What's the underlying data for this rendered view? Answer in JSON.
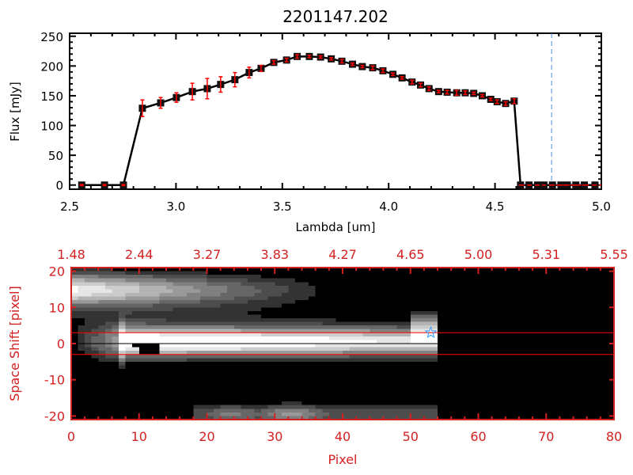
{
  "chart_data": [
    {
      "type": "line",
      "title": "2201147.202",
      "xlabel": "Lambda [um]",
      "ylabel": "Flux [mJy]",
      "xlim": [
        2.5,
        5.0
      ],
      "ylim": [
        -7,
        255
      ],
      "xticks": [
        "2.5",
        "3.0",
        "3.5",
        "4.0",
        "4.5",
        "5.0"
      ],
      "xtick_values": [
        2.5,
        3.0,
        3.5,
        4.0,
        4.5,
        5.0
      ],
      "yticks": [
        "0",
        "50",
        "100",
        "150",
        "200",
        "250"
      ],
      "ytick_values": [
        0,
        50,
        100,
        150,
        200,
        250
      ],
      "grid": false,
      "series": [
        {
          "x": [
            2.557,
            2.664,
            2.753,
            2.842,
            2.928,
            3.002,
            3.077,
            3.147,
            3.21,
            3.277,
            3.344,
            3.4,
            3.46,
            3.52,
            3.57,
            3.627,
            3.68,
            3.73,
            3.78,
            3.83,
            3.876,
            3.925,
            3.973,
            4.02,
            4.063,
            4.11,
            4.15,
            4.19,
            4.235,
            4.275,
            4.32,
            4.36,
            4.4,
            4.44,
            4.48,
            4.51,
            4.55,
            4.59,
            4.62,
            4.66,
            4.7,
            4.73,
            4.77,
            4.81,
            4.84,
            4.88,
            4.92,
            4.97
          ],
          "y": [
            0,
            0,
            0,
            129,
            138,
            147,
            157,
            162,
            169,
            177,
            189,
            196,
            206,
            210,
            216,
            216,
            215,
            212,
            208,
            203,
            199,
            197,
            192,
            186,
            180,
            173,
            168,
            162,
            157,
            156,
            155,
            155,
            154,
            150,
            144,
            140,
            137,
            141,
            0,
            0,
            0,
            0,
            0,
            0,
            0,
            0,
            0,
            0
          ],
          "yerr": [
            1,
            1,
            1,
            14,
            9,
            8,
            14,
            17,
            13,
            12,
            9,
            5,
            3,
            3,
            3,
            2,
            2,
            2,
            3,
            2,
            2,
            3,
            3,
            2,
            2,
            3,
            3,
            3,
            2,
            3,
            4,
            3,
            2,
            2,
            2,
            3,
            3,
            4,
            0,
            0,
            0,
            0,
            0,
            0,
            0,
            0,
            0,
            0
          ]
        }
      ],
      "line_color": "#000000",
      "errorbar_color": "#ff0000",
      "zero_line": {
        "x_from": 4.62,
        "x_to": 5.0,
        "y": 0,
        "color": "#ff0000",
        "style": "dashed"
      },
      "vertical_marker": {
        "x": 4.766,
        "color": "#4a90d9",
        "style": "dashed"
      }
    },
    {
      "type": "heatmap",
      "xlabel": "Pixel",
      "ylabel": "Space Shift [pixel]",
      "xlim": [
        0,
        80
      ],
      "ylim": [
        -21,
        21
      ],
      "xticks": [
        "0",
        "10",
        "20",
        "30",
        "40",
        "50",
        "60",
        "70",
        "80"
      ],
      "xtick_values": [
        0,
        10,
        20,
        30,
        40,
        50,
        60,
        70,
        80
      ],
      "top_xticks": [
        "1.48",
        "2.44",
        "3.27",
        "3.83",
        "4.27",
        "4.65",
        "5.00",
        "5.31",
        "5.55"
      ],
      "yticks": [
        "20",
        "10",
        "0",
        "-10",
        "-20"
      ],
      "ytick_values": [
        20,
        10,
        0,
        -10,
        -20
      ],
      "colormap": "grayscale",
      "data_extent_pixels": [
        0,
        53.5
      ],
      "axis_color": "#d42020",
      "lines": [
        {
          "y": 3,
          "color": "#ff0000"
        },
        {
          "y": 0,
          "color": "#000000"
        },
        {
          "y": -3,
          "color": "#ff0000"
        }
      ],
      "star_marker": {
        "x": 53,
        "y": 3,
        "color": "#3399ff"
      }
    }
  ]
}
